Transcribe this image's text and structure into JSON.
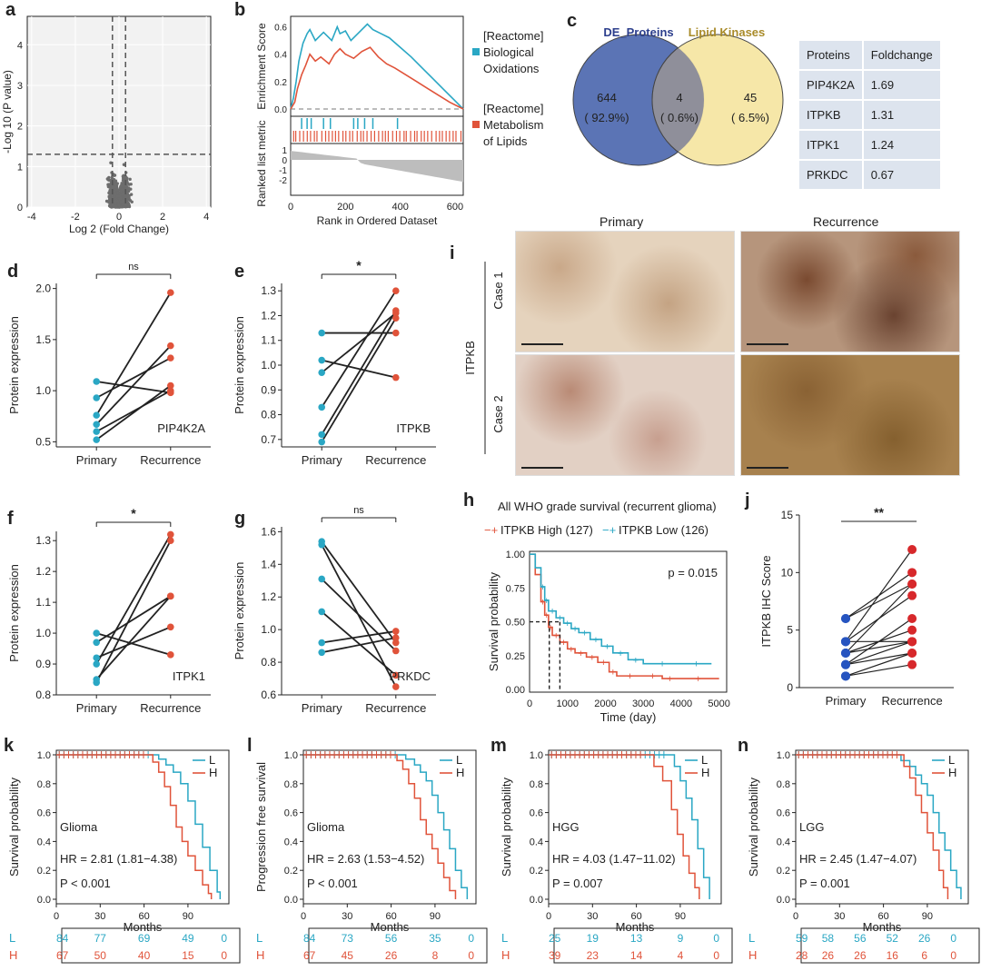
{
  "panel_labels": [
    "a",
    "b",
    "c",
    "d",
    "e",
    "f",
    "g",
    "h",
    "i",
    "j",
    "k",
    "l",
    "m",
    "n"
  ],
  "colors": {
    "blue": "#2aa7c4",
    "red": "#e0533a",
    "grey": "#6d6d6d",
    "venn_blue": "#5b74b5",
    "venn_yellow": "#f5e6a3",
    "table_bg": "#dde4ee",
    "navy": "#2c3e8c",
    "gold": "#a98b2a"
  },
  "panel_a": {
    "xlabel": "Log 2 (Fold Change)",
    "ylabel": "-Log 10 (P value)",
    "xticks": [
      "-4",
      "-2",
      "0",
      "2",
      "4"
    ],
    "yticks": [
      "0",
      "1",
      "2",
      "3",
      "4"
    ]
  },
  "panel_b": {
    "ylabel_top": "Enrichment Score",
    "ylabel_bottom": "Ranked list metric",
    "xlabel": "Rank in Ordered Dataset",
    "xticks": [
      "0",
      "200",
      "400",
      "600"
    ],
    "es_ticks": [
      "0.0",
      "0.2",
      "0.4",
      "0.6"
    ],
    "metric_ticks": [
      "1",
      "0",
      "-1",
      "-2"
    ],
    "legend": [
      {
        "line1": "[Reactome]",
        "line2": "Biological",
        "line3": "Oxidations",
        "color": "#2aa7c4"
      },
      {
        "line1": "[Reactome]",
        "line2": "Metabolism",
        "line3": "of Lipids",
        "color": "#e0533a"
      }
    ]
  },
  "panel_c": {
    "set_a": "DE_Proteins",
    "set_b": "Lipid Kinases",
    "only_a": "644",
    "only_a_pct": "( 92.9%)",
    "both": "4",
    "both_pct": "( 0.6%)",
    "only_b": "45",
    "only_b_pct": "( 6.5%)",
    "table_header": [
      "Proteins",
      "Foldchange"
    ],
    "table_rows": [
      [
        "PIP4K2A",
        "1.69"
      ],
      [
        "ITPKB",
        "1.31"
      ],
      [
        "ITPK1",
        "1.24"
      ],
      [
        "PRKDC",
        "0.67"
      ]
    ]
  },
  "panel_i": {
    "col_labels": [
      "Primary",
      "Recurrence"
    ],
    "row_labels": [
      "Case 1",
      "Case 2"
    ],
    "side_label": "ITPKB"
  },
  "panel_h": {
    "title": "All WHO grade survival (recurrent glioma)",
    "legend_high": "ITPKB High (127)",
    "legend_low": "ITPKB Low (126)",
    "pvalue": "p = 0.015",
    "xlabel": "Time (day)",
    "ylabel": "Survival probability",
    "xticks": [
      "0",
      "1000",
      "2000",
      "3000",
      "4000",
      "5000"
    ],
    "yticks": [
      "0.00",
      "0.25",
      "0.50",
      "0.75",
      "1.00"
    ]
  },
  "panel_j": {
    "ylabel": "ITPKB IHC Score",
    "sig": "**",
    "yticks": [
      "0",
      "5",
      "10",
      "15"
    ],
    "xcats": [
      "Primary",
      "Recurrence"
    ]
  },
  "km_panels": [
    {
      "label": "k",
      "ylabel": "Survival probability",
      "group": "Glioma",
      "hr": "HR = 2.81 (1.81−4.38)",
      "p": "P < 0.001",
      "L": [
        "84",
        "77",
        "69",
        "49",
        "0"
      ],
      "H": [
        "67",
        "50",
        "40",
        "15",
        "0"
      ]
    },
    {
      "label": "l",
      "ylabel": "Progression free survival",
      "group": "Glioma",
      "hr": "HR = 2.63 (1.53−4.52)",
      "p": "P < 0.001",
      "L": [
        "84",
        "73",
        "56",
        "35",
        "0"
      ],
      "H": [
        "67",
        "45",
        "26",
        "8",
        "0"
      ]
    },
    {
      "label": "m",
      "ylabel": "Survival probability",
      "group": "HGG",
      "hr": "HR = 4.03 (1.47−11.02)",
      "p": "P = 0.007",
      "L": [
        "25",
        "19",
        "13",
        "9",
        "0"
      ],
      "H": [
        "39",
        "23",
        "14",
        "4",
        "0"
      ]
    },
    {
      "label": "n",
      "ylabel": "Survival probability",
      "group": "LGG",
      "hr": "HR = 2.45 (1.47−4.07)",
      "p": "P = 0.001",
      "L": [
        "59",
        "58",
        "56",
        "52",
        "26",
        "0"
      ],
      "H": [
        "28",
        "26",
        "26",
        "16",
        "6",
        "0"
      ]
    }
  ],
  "km_common": {
    "xlabel": "Months",
    "xticks": [
      "0",
      "30",
      "60",
      "90"
    ],
    "yticks": [
      "0.0",
      "0.2",
      "0.4",
      "0.6",
      "0.8",
      "1.0"
    ],
    "legend_L": "L",
    "legend_H": "H"
  },
  "chart_data": [
    {
      "panel": "d",
      "type": "scatter",
      "ylabel": "Protein expression",
      "xcats": [
        "Primary",
        "Recurrence"
      ],
      "sig": "ns",
      "gene": "PIP4K2A",
      "ylim": [
        0.45,
        2.05
      ],
      "yticks": [
        "0.5",
        "1.0",
        "1.5",
        "2.0"
      ],
      "pairs": [
        [
          0.52,
          1.05
        ],
        [
          0.6,
          1.0
        ],
        [
          0.67,
          1.44
        ],
        [
          0.76,
          1.96
        ],
        [
          0.93,
          1.32
        ],
        [
          1.09,
          0.98
        ]
      ]
    },
    {
      "panel": "e",
      "type": "scatter",
      "ylabel": "Protein expression",
      "xcats": [
        "Primary",
        "Recurrence"
      ],
      "sig": "*",
      "gene": "ITPKB",
      "ylim": [
        0.67,
        1.33
      ],
      "yticks": [
        "0.7",
        "0.8",
        "0.9",
        "1.0",
        "1.1",
        "1.2",
        "1.3"
      ],
      "pairs": [
        [
          0.69,
          1.19
        ],
        [
          0.72,
          1.22
        ],
        [
          0.83,
          1.3
        ],
        [
          0.97,
          1.21
        ],
        [
          1.02,
          0.95
        ],
        [
          1.13,
          1.13
        ]
      ]
    },
    {
      "panel": "f",
      "type": "scatter",
      "ylabel": "Protein expression",
      "xcats": [
        "Primary",
        "Recurrence"
      ],
      "sig": "*",
      "gene": "ITPK1",
      "ylim": [
        0.8,
        1.33
      ],
      "yticks": [
        "0.8",
        "0.9",
        "1.0",
        "1.1",
        "1.2",
        "1.3"
      ],
      "pairs": [
        [
          0.84,
          1.3
        ],
        [
          0.85,
          1.12
        ],
        [
          0.9,
          1.32
        ],
        [
          0.92,
          1.02
        ],
        [
          0.97,
          1.12
        ],
        [
          1.0,
          0.93
        ]
      ]
    },
    {
      "panel": "g",
      "type": "scatter",
      "ylabel": "Protein expression",
      "xcats": [
        "Primary",
        "Recurrence"
      ],
      "sig": "ns",
      "gene": "PRKDC",
      "ylim": [
        0.6,
        1.63
      ],
      "yticks": [
        "0.6",
        "0.8",
        "1.0",
        "1.2",
        "1.4",
        "1.6"
      ],
      "pairs": [
        [
          0.86,
          0.95
        ],
        [
          0.92,
          0.99
        ],
        [
          1.11,
          0.72
        ],
        [
          1.31,
          0.87
        ],
        [
          1.52,
          0.65
        ],
        [
          1.54,
          0.92
        ]
      ]
    },
    {
      "panel": "j",
      "type": "scatter",
      "ylabel": "ITPKB IHC Score",
      "xcats": [
        "Primary",
        "Recurrence"
      ],
      "sig": "**",
      "ylim": [
        0,
        15
      ],
      "pairs": [
        [
          1,
          2
        ],
        [
          1,
          3
        ],
        [
          2,
          4
        ],
        [
          2,
          3
        ],
        [
          2,
          6
        ],
        [
          3,
          4
        ],
        [
          3,
          5
        ],
        [
          3,
          9
        ],
        [
          4,
          4
        ],
        [
          4,
          8
        ],
        [
          4,
          12
        ],
        [
          6,
          9
        ],
        [
          6,
          10
        ]
      ]
    },
    {
      "panel": "h",
      "type": "line",
      "title": "All WHO grade survival (recurrent glioma)",
      "xlabel": "Time (day)",
      "ylabel": "Survival probability",
      "xlim": [
        0,
        5200
      ],
      "ylim": [
        0,
        1
      ],
      "series": [
        {
          "name": "ITPKB High (127)",
          "x": [
            0,
            150,
            300,
            400,
            500,
            600,
            800,
            1000,
            1200,
            1500,
            1800,
            2100,
            2300,
            3000,
            3500,
            3900,
            5000
          ],
          "y": [
            1,
            0.85,
            0.65,
            0.55,
            0.46,
            0.4,
            0.35,
            0.3,
            0.27,
            0.24,
            0.2,
            0.13,
            0.1,
            0.1,
            0.08,
            0.08,
            0.08
          ]
        },
        {
          "name": "ITPKB Low (126)",
          "x": [
            0,
            150,
            300,
            400,
            500,
            700,
            900,
            1100,
            1300,
            1600,
            1900,
            2200,
            2600,
            3000,
            4000,
            4800
          ],
          "y": [
            1,
            0.9,
            0.76,
            0.66,
            0.58,
            0.53,
            0.49,
            0.45,
            0.42,
            0.37,
            0.32,
            0.27,
            0.22,
            0.19,
            0.19,
            0.19
          ]
        }
      ]
    },
    {
      "panel": "k",
      "type": "line",
      "xlabel": "Months",
      "ylabel": "Survival probability",
      "xlim": [
        0,
        115
      ],
      "ylim": [
        0,
        1
      ],
      "series": [
        {
          "name": "L",
          "x": [
            0,
            64,
            70,
            75,
            80,
            85,
            90,
            95,
            100,
            105,
            110,
            112
          ],
          "y": [
            1,
            1,
            0.97,
            0.93,
            0.88,
            0.8,
            0.68,
            0.52,
            0.36,
            0.2,
            0.05,
            0
          ]
        },
        {
          "name": "H",
          "x": [
            0,
            60,
            66,
            70,
            74,
            78,
            82,
            86,
            90,
            95,
            100,
            104,
            106
          ],
          "y": [
            1,
            1,
            0.95,
            0.88,
            0.78,
            0.65,
            0.5,
            0.4,
            0.3,
            0.2,
            0.1,
            0.04,
            0
          ]
        }
      ]
    },
    {
      "panel": "l",
      "type": "line",
      "xlabel": "Months",
      "ylabel": "Progression free survival",
      "xlim": [
        0,
        115
      ],
      "ylim": [
        0,
        1
      ],
      "series": [
        {
          "name": "L",
          "x": [
            0,
            64,
            70,
            76,
            80,
            84,
            88,
            92,
            96,
            100,
            104,
            108,
            112
          ],
          "y": [
            1,
            1,
            0.97,
            0.93,
            0.88,
            0.82,
            0.72,
            0.6,
            0.48,
            0.35,
            0.2,
            0.08,
            0
          ]
        },
        {
          "name": "H",
          "x": [
            0,
            60,
            64,
            68,
            72,
            76,
            80,
            84,
            88,
            92,
            96,
            100,
            104
          ],
          "y": [
            1,
            1,
            0.96,
            0.9,
            0.8,
            0.7,
            0.55,
            0.45,
            0.35,
            0.25,
            0.15,
            0.06,
            0
          ]
        }
      ]
    },
    {
      "panel": "m",
      "type": "line",
      "xlabel": "Months",
      "ylabel": "Survival probability",
      "xlim": [
        0,
        115
      ],
      "ylim": [
        0,
        1
      ],
      "series": [
        {
          "name": "L",
          "x": [
            0,
            80,
            86,
            90,
            94,
            98,
            102,
            106,
            110
          ],
          "y": [
            1,
            1,
            0.92,
            0.82,
            0.7,
            0.55,
            0.35,
            0.15,
            0
          ]
        },
        {
          "name": "H",
          "x": [
            0,
            66,
            72,
            78,
            84,
            88,
            92,
            96,
            100,
            103
          ],
          "y": [
            1,
            1,
            0.92,
            0.82,
            0.62,
            0.45,
            0.3,
            0.18,
            0.08,
            0
          ]
        }
      ]
    },
    {
      "panel": "n",
      "type": "line",
      "xlabel": "Months",
      "ylabel": "Survival probability",
      "xlim": [
        0,
        115
      ],
      "ylim": [
        0,
        1
      ],
      "series": [
        {
          "name": "L",
          "x": [
            0,
            66,
            72,
            78,
            82,
            86,
            90,
            94,
            98,
            102,
            106,
            110,
            113
          ],
          "y": [
            1,
            1,
            0.96,
            0.92,
            0.86,
            0.8,
            0.72,
            0.6,
            0.46,
            0.34,
            0.2,
            0.08,
            0
          ]
        },
        {
          "name": "H",
          "x": [
            0,
            70,
            74,
            78,
            82,
            86,
            90,
            94,
            98,
            101,
            104
          ],
          "y": [
            1,
            1,
            0.92,
            0.84,
            0.72,
            0.6,
            0.46,
            0.34,
            0.2,
            0.08,
            0
          ]
        }
      ]
    }
  ]
}
